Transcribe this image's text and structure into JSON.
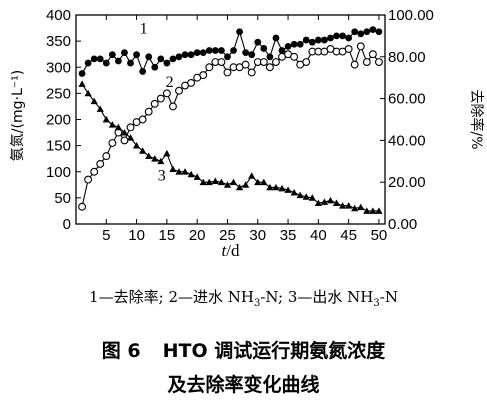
{
  "chart_data": {
    "type": "line",
    "xlabel_var": "t",
    "xlabel_unit": "/d",
    "ylabel_left": "氨氮/(mg·L⁻¹)",
    "ylabel_right": "去除率/%",
    "xlim": [
      0,
      51
    ],
    "ylim_left": [
      0,
      400
    ],
    "ylim_right": [
      0,
      100
    ],
    "x_ticks": [
      5,
      10,
      15,
      20,
      25,
      30,
      35,
      40,
      45,
      50
    ],
    "y_ticks_left": [
      0,
      50,
      100,
      150,
      200,
      250,
      300,
      350,
      400
    ],
    "y_ticks_right": [
      "0.00",
      "20.00",
      "40.00",
      "60.00",
      "80.00",
      "100.00"
    ],
    "grid": false,
    "series": [
      {
        "name": "1",
        "axis": "right",
        "marker": "filled-circle",
        "x": [
          1,
          2,
          3,
          4,
          5,
          6,
          7,
          8,
          9,
          10,
          11,
          12,
          13,
          14,
          15,
          16,
          17,
          18,
          19,
          20,
          21,
          22,
          23,
          24,
          25,
          26,
          27,
          28,
          29,
          30,
          31,
          32,
          33,
          34,
          35,
          36,
          37,
          38,
          39,
          40,
          41,
          42,
          43,
          44,
          45,
          46,
          47,
          48,
          49,
          50
        ],
        "y": [
          72,
          77,
          79,
          79,
          77,
          81,
          78,
          82,
          77,
          81,
          73,
          80,
          75,
          79,
          77,
          79,
          80,
          81,
          81,
          82,
          82,
          83,
          83,
          83,
          80,
          83,
          92,
          82,
          81,
          87,
          84,
          80,
          89,
          83,
          85,
          86,
          86,
          88,
          87,
          88,
          88,
          89,
          90,
          90,
          89,
          92,
          91,
          92,
          93,
          92
        ]
      },
      {
        "name": "2",
        "axis": "left",
        "marker": "open-circle",
        "x": [
          1,
          2,
          3,
          4,
          5,
          6,
          7,
          8,
          9,
          10,
          11,
          12,
          13,
          14,
          15,
          16,
          17,
          18,
          19,
          20,
          21,
          22,
          23,
          24,
          25,
          26,
          27,
          28,
          29,
          30,
          31,
          32,
          33,
          34,
          35,
          36,
          37,
          38,
          39,
          40,
          41,
          42,
          43,
          44,
          45,
          46,
          47,
          48,
          49,
          50
        ],
        "y": [
          33,
          85,
          100,
          115,
          130,
          155,
          175,
          160,
          185,
          195,
          200,
          215,
          230,
          240,
          250,
          225,
          255,
          265,
          270,
          280,
          285,
          300,
          310,
          310,
          290,
          300,
          300,
          305,
          290,
          310,
          310,
          300,
          310,
          320,
          325,
          320,
          305,
          310,
          330,
          330,
          330,
          335,
          330,
          330,
          335,
          305,
          340,
          310,
          325,
          310
        ]
      },
      {
        "name": "3",
        "axis": "left",
        "marker": "filled-triangle",
        "x": [
          1,
          2,
          3,
          4,
          5,
          6,
          7,
          8,
          9,
          10,
          11,
          12,
          13,
          14,
          15,
          16,
          17,
          18,
          19,
          20,
          21,
          22,
          23,
          24,
          25,
          26,
          27,
          28,
          29,
          30,
          31,
          32,
          33,
          34,
          35,
          36,
          37,
          38,
          39,
          40,
          41,
          42,
          43,
          44,
          45,
          46,
          47,
          48,
          49,
          50
        ],
        "y": [
          268,
          250,
          235,
          220,
          200,
          190,
          185,
          175,
          165,
          150,
          140,
          130,
          125,
          120,
          135,
          105,
          100,
          100,
          95,
          90,
          80,
          80,
          82,
          80,
          75,
          80,
          70,
          75,
          92,
          80,
          80,
          70,
          70,
          68,
          65,
          60,
          55,
          52,
          50,
          40,
          42,
          45,
          40,
          35,
          35,
          30,
          32,
          25,
          25,
          25
        ]
      }
    ]
  },
  "legend_text": {
    "item1_num": "1",
    "item1_label": "去除率",
    "item2_num": "2",
    "item2_label": "进水 NH",
    "item2_sub": "3",
    "item2_suffix": "-N",
    "item3_num": "3",
    "item3_label": "出水 NH",
    "item3_sub": "3",
    "item3_suffix": "-N",
    "sep1": "—",
    "sep2": "; ",
    "sep3": "—",
    "sep4": "; ",
    "sep5": "—"
  },
  "caption": {
    "fig_num": "图 6",
    "line1": "HTO 调试运行期氨氮浓度",
    "line2": "及去除率变化曲线"
  }
}
